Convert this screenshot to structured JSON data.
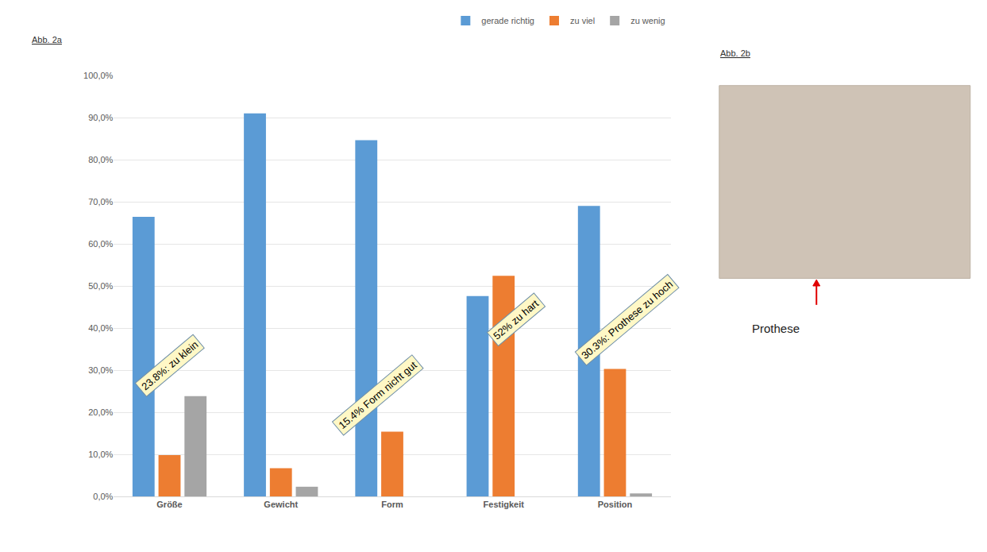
{
  "chart_data": {
    "type": "bar",
    "panel_title": "Abb. 2a",
    "categories": [
      "Größe",
      "Gewicht",
      "Form",
      "Festigkeit",
      "Position"
    ],
    "series": [
      {
        "name": "gerade richtig",
        "color": "#5B9BD5",
        "values": [
          66.4,
          91.0,
          84.6,
          47.6,
          69.0
        ]
      },
      {
        "name": "zu viel",
        "color": "#ED7D31",
        "values": [
          9.8,
          6.7,
          15.4,
          52.4,
          30.3
        ]
      },
      {
        "name": "zu wenig",
        "color": "#A5A5A5",
        "values": [
          23.8,
          2.3,
          0,
          0,
          0.7
        ]
      }
    ],
    "ylim": [
      0,
      100
    ],
    "yticks": [
      {
        "value": 0,
        "label": "0,0%"
      },
      {
        "value": 10,
        "label": "10,0%"
      },
      {
        "value": 20,
        "label": "20,0%"
      },
      {
        "value": 30,
        "label": "30,0%"
      },
      {
        "value": 40,
        "label": "40,0%"
      },
      {
        "value": 50,
        "label": "50,0%"
      },
      {
        "value": 60,
        "label": "60,0%"
      },
      {
        "value": 70,
        "label": "70,0%"
      },
      {
        "value": 80,
        "label": "80,0%"
      },
      {
        "value": 90,
        "label": "90,0%"
      },
      {
        "value": 100,
        "label": "100,0%"
      }
    ],
    "grid": true,
    "legend": "top",
    "annotations": [
      {
        "text": "23.8%: zu klein",
        "category": "Größe"
      },
      {
        "text": "15.4% Form nicht gut",
        "category": "Form"
      },
      {
        "text": "52% zu hart",
        "category": "Festigkeit"
      },
      {
        "text": "30.3%: Prothese zu hoch",
        "category": "Position"
      }
    ],
    "image_panel": {
      "title": "Abb. 2b",
      "label": "Prothese"
    }
  }
}
